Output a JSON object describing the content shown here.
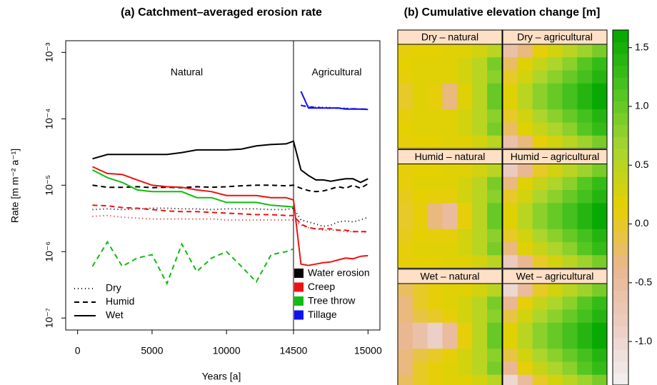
{
  "chart_data": [
    {
      "type": "line",
      "title": "(a) Catchment–averaged erosion rate",
      "xlabel": "Years [a]",
      "ylabel": "Rate [m m⁻² a⁻¹]",
      "log_y": true,
      "panels": [
        {
          "label": "Natural",
          "xlim": [
            -800,
            14500
          ]
        },
        {
          "label": "Agricultural",
          "xlim": [
            14500,
            15080
          ]
        }
      ],
      "ylim": [
        6.6e-08,
        0.0015
      ],
      "yticks": [
        {
          "value": 1e-07,
          "label": "10⁻⁷"
        },
        {
          "value": 1e-06,
          "label": "10⁻⁶"
        },
        {
          "value": 1e-05,
          "label": "10⁻⁵"
        },
        {
          "value": 0.0001,
          "label": "10⁻⁴"
        },
        {
          "value": 0.001,
          "label": "10⁻³"
        }
      ],
      "xticks": [
        0,
        5000,
        10000,
        14500,
        15000
      ],
      "climates": [
        {
          "name": "Dry",
          "dash": "1,4"
        },
        {
          "name": "Humid",
          "dash": "7,5"
        },
        {
          "name": "Wet",
          "dash": "none"
        }
      ],
      "x": [
        1000,
        2000,
        3000,
        4000,
        5000,
        6000,
        7000,
        8000,
        9000,
        10000,
        11000,
        12000,
        13000,
        14000,
        14500,
        14550,
        14600,
        14650,
        14700,
        14750,
        14800,
        14850,
        14900,
        14950,
        15000
      ],
      "series": [
        {
          "name": "Water erosion",
          "climate": "Wet",
          "color": "#000000",
          "values": [
            2.5e-05,
            2.9e-05,
            2.9e-05,
            2.9e-05,
            2.9e-05,
            2.9e-05,
            3.1e-05,
            3.4e-05,
            3.4e-05,
            3.4e-05,
            3.5e-05,
            3.9e-05,
            4.1e-05,
            4.2e-05,
            4.6e-05,
            1.7e-05,
            1.4e-05,
            1.2e-05,
            1.2e-05,
            1.15e-05,
            1.2e-05,
            1.25e-05,
            1.25e-05,
            1.1e-05,
            1.25e-05
          ]
        },
        {
          "name": "Water erosion",
          "climate": "Humid",
          "color": "#000000",
          "values": [
            1e-05,
            9.3e-06,
            9.3e-06,
            9.5e-06,
            9.2e-06,
            9.3e-06,
            9.2e-06,
            9.5e-06,
            9.3e-06,
            9.5e-06,
            9.8e-06,
            1e-05,
            1e-05,
            9.8e-06,
            1e-05,
            9e-06,
            8.3e-06,
            8e-06,
            8.2e-06,
            8.8e-06,
            9.5e-06,
            9e-06,
            1e-05,
            9e-06,
            1.05e-05
          ]
        },
        {
          "name": "Water erosion",
          "climate": "Dry",
          "color": "#000000",
          "values": [
            4.3e-06,
            4.4e-06,
            4.3e-06,
            4.4e-06,
            4.5e-06,
            4.5e-06,
            4.4e-06,
            4.4e-06,
            4.3e-06,
            4.4e-06,
            4.4e-06,
            4.4e-06,
            4.3e-06,
            4.3e-06,
            4.5e-06,
            3e-06,
            2.8e-06,
            2.6e-06,
            2.4e-06,
            2.5e-06,
            2.8e-06,
            2.9e-06,
            2.8e-06,
            3e-06,
            3.3e-06
          ]
        },
        {
          "name": "Creep",
          "climate": "Wet",
          "color": "#ee1111",
          "values": [
            1.9e-05,
            1.5e-05,
            1.45e-05,
            1.2e-05,
            1e-05,
            9.5e-06,
            9.3e-06,
            8.5e-06,
            8e-06,
            7e-06,
            7e-06,
            7e-06,
            6.5e-06,
            6.5e-06,
            6e-06,
            6.5e-07,
            6.2e-07,
            6.5e-07,
            6.8e-07,
            7e-07,
            7.5e-07,
            8e-07,
            7.8e-07,
            8.5e-07,
            8.7e-07
          ]
        },
        {
          "name": "Creep",
          "climate": "Humid",
          "color": "#ee1111",
          "values": [
            5e-06,
            4.9e-06,
            4.6e-06,
            4.5e-06,
            4.3e-06,
            4.1e-06,
            4e-06,
            4e-06,
            3.9e-06,
            3.8e-06,
            3.7e-06,
            3.6e-06,
            3.6e-06,
            3.5e-06,
            3.5e-06,
            2.6e-06,
            2.3e-06,
            2.2e-06,
            2.2e-06,
            2.2e-06,
            2.1e-06,
            2.1e-06,
            2e-06,
            2e-06,
            2e-06
          ]
        },
        {
          "name": "Creep",
          "climate": "Dry",
          "color": "#ee1111",
          "values": [
            3.4e-06,
            3.5e-06,
            3.3e-06,
            3.2e-06,
            3.1e-06,
            3.1e-06,
            3.1e-06,
            3.1e-06,
            3.1e-06,
            3e-06,
            3e-06,
            3e-06,
            3e-06,
            3e-06,
            3e-06,
            2.5e-06,
            2.3e-06,
            2.2e-06,
            2.1e-06,
            2.1e-06,
            2.1e-06,
            2e-06,
            2e-06,
            2e-06,
            1.95e-06
          ]
        },
        {
          "name": "Tree throw",
          "climate": "Wet",
          "color": "#11bb11",
          "values": [
            1.7e-05,
            1.3e-05,
            1.1e-05,
            8.5e-06,
            8e-06,
            8e-06,
            8e-06,
            6.5e-06,
            6.5e-06,
            5.5e-06,
            5.5e-06,
            5.5e-06,
            5e-06,
            4.8e-06,
            4.7e-06,
            null,
            null,
            null,
            null,
            null,
            null,
            null,
            null,
            null,
            null
          ]
        },
        {
          "name": "Tree throw",
          "climate": "Humid",
          "color": "#11bb11",
          "values": [
            6e-07,
            1.4e-06,
            6e-07,
            8e-07,
            9e-07,
            3.3e-07,
            1.3e-06,
            5e-07,
            8e-07,
            1e-06,
            6e-07,
            3.5e-07,
            9e-07,
            1e-06,
            1.1e-06,
            null,
            null,
            null,
            null,
            null,
            null,
            null,
            null,
            null,
            null
          ]
        },
        {
          "name": "Tillage",
          "climate": "Wet",
          "color": "#1111ee",
          "values": [
            null,
            null,
            null,
            null,
            null,
            null,
            null,
            null,
            null,
            null,
            null,
            null,
            null,
            null,
            null,
            0.00026,
            0.000145,
            0.000145,
            0.000145,
            0.000145,
            0.000145,
            0.00014,
            0.00014,
            0.00014,
            0.000138
          ]
        },
        {
          "name": "Tillage",
          "climate": "Humid",
          "color": "#1111ee",
          "values": [
            null,
            null,
            null,
            null,
            null,
            null,
            null,
            null,
            null,
            null,
            null,
            null,
            null,
            null,
            null,
            0.00016,
            0.00015,
            0.00015,
            0.000145,
            0.000145,
            0.000145,
            0.000142,
            0.000142,
            0.00014,
            0.00014
          ]
        },
        {
          "name": "Tillage",
          "climate": "Dry",
          "color": "#1111ee",
          "values": [
            null,
            null,
            null,
            null,
            null,
            null,
            null,
            null,
            null,
            null,
            null,
            null,
            null,
            null,
            null,
            0.00016,
            0.000155,
            0.00015,
            0.00015,
            0.000148,
            0.000145,
            0.000145,
            0.000142,
            0.00014,
            0.00014
          ]
        }
      ]
    },
    {
      "type": "heatmap",
      "title": "(b) Cumulative elevation change [m]",
      "zlim": [
        -1.37,
        1.65
      ],
      "zticks": [
        {
          "value": -1,
          "label": "-1.0"
        },
        -0.5,
        {
          "value": 0,
          "label": "0.0"
        },
        0.5,
        {
          "value": 1,
          "label": "1.0"
        },
        1.5
      ],
      "colors": [
        "#f2f2f2",
        "#eccdc4",
        "#e9b68f",
        "#e6d000",
        "#a8d530",
        "#4cc421",
        "#00a600"
      ],
      "panels": [
        {
          "label": "Dry – natural",
          "values": [
            [
              0.1,
              0.15,
              0.15,
              0.2,
              0.2,
              0.3,
              0.5
            ],
            [
              0.15,
              0.2,
              0.2,
              0.2,
              0.3,
              0.5,
              0.9
            ],
            [
              0.1,
              0.2,
              0.2,
              0.2,
              0.3,
              0.5,
              0.8
            ],
            [
              0.0,
              0.2,
              0.1,
              -0.3,
              0.2,
              0.5,
              1.0
            ],
            [
              0.0,
              0.2,
              0.1,
              -0.3,
              0.2,
              0.5,
              1.0
            ],
            [
              0.1,
              0.2,
              0.2,
              0.2,
              0.3,
              0.5,
              0.8
            ],
            [
              0.15,
              0.2,
              0.2,
              0.2,
              0.3,
              0.5,
              0.9
            ],
            [
              0.1,
              0.15,
              0.15,
              0.2,
              0.2,
              0.3,
              0.5
            ]
          ]
        },
        {
          "label": "Dry – agricultural",
          "values": [
            [
              -0.6,
              -0.3,
              0.1,
              0.3,
              0.5,
              0.7,
              0.9
            ],
            [
              -0.2,
              0.2,
              0.4,
              0.6,
              0.8,
              1.1,
              1.3
            ],
            [
              0.0,
              0.3,
              0.6,
              0.8,
              1.0,
              1.2,
              1.4
            ],
            [
              0.2,
              0.5,
              0.8,
              1.0,
              1.2,
              1.4,
              1.6
            ],
            [
              0.2,
              0.5,
              0.8,
              1.0,
              1.2,
              1.4,
              1.6
            ],
            [
              0.0,
              0.3,
              0.6,
              0.8,
              1.0,
              1.2,
              1.4
            ],
            [
              -0.2,
              0.2,
              0.4,
              0.6,
              0.8,
              1.1,
              1.3
            ],
            [
              -0.6,
              -0.3,
              0.1,
              0.3,
              0.5,
              0.7,
              0.9
            ]
          ]
        },
        {
          "label": "Humid – natural",
          "values": [
            [
              0.1,
              0.15,
              0.15,
              0.2,
              0.2,
              0.3,
              0.5
            ],
            [
              0.1,
              0.2,
              0.2,
              0.2,
              0.3,
              0.5,
              0.9
            ],
            [
              0.05,
              0.15,
              0.1,
              0.1,
              0.3,
              0.5,
              0.8
            ],
            [
              0.0,
              0.1,
              -0.3,
              -0.5,
              0.1,
              0.5,
              1.0
            ],
            [
              0.0,
              0.1,
              -0.3,
              -0.5,
              0.1,
              0.5,
              1.0
            ],
            [
              0.05,
              0.15,
              0.1,
              0.1,
              0.3,
              0.5,
              0.8
            ],
            [
              0.1,
              0.2,
              0.2,
              0.2,
              0.3,
              0.5,
              0.9
            ],
            [
              0.1,
              0.15,
              0.15,
              0.2,
              0.2,
              0.3,
              0.5
            ]
          ]
        },
        {
          "label": "Humid – agricultural",
          "values": [
            [
              -0.8,
              -0.4,
              0.0,
              0.3,
              0.5,
              0.7,
              0.9
            ],
            [
              -0.3,
              0.2,
              0.4,
              0.6,
              0.8,
              1.1,
              1.3
            ],
            [
              0.0,
              0.3,
              0.6,
              0.8,
              1.0,
              1.2,
              1.4
            ],
            [
              0.2,
              0.5,
              0.8,
              1.0,
              1.2,
              1.4,
              1.6
            ],
            [
              0.2,
              0.5,
              0.8,
              1.0,
              1.2,
              1.4,
              1.6
            ],
            [
              0.0,
              0.3,
              0.6,
              0.8,
              1.0,
              1.2,
              1.4
            ],
            [
              -0.3,
              0.2,
              0.4,
              0.6,
              0.8,
              1.1,
              1.3
            ],
            [
              -0.8,
              -0.4,
              0.0,
              0.3,
              0.5,
              0.7,
              0.9
            ]
          ]
        },
        {
          "label": "Wet – natural",
          "values": [
            [
              -0.2,
              0.0,
              0.1,
              0.2,
              0.2,
              0.3,
              0.5
            ],
            [
              -0.3,
              0.0,
              0.1,
              0.2,
              0.3,
              0.5,
              0.9
            ],
            [
              -0.3,
              -0.1,
              0.0,
              0.1,
              0.3,
              0.5,
              0.8
            ],
            [
              -0.4,
              -0.6,
              -0.9,
              -0.5,
              0.1,
              0.5,
              1.0
            ],
            [
              -0.4,
              -0.6,
              -0.9,
              -0.5,
              0.1,
              0.5,
              1.0
            ],
            [
              -0.3,
              -0.1,
              0.0,
              0.1,
              0.3,
              0.5,
              0.8
            ],
            [
              -0.3,
              0.0,
              0.1,
              0.2,
              0.3,
              0.5,
              0.9
            ],
            [
              -0.2,
              0.0,
              0.1,
              0.2,
              0.2,
              0.3,
              0.5
            ]
          ]
        },
        {
          "label": "Wet – agricultural",
          "values": [
            [
              -1.0,
              -0.5,
              0.0,
              0.3,
              0.5,
              0.7,
              0.9
            ],
            [
              -0.4,
              0.1,
              0.4,
              0.6,
              0.8,
              1.1,
              1.3
            ],
            [
              -0.1,
              0.3,
              0.6,
              0.8,
              1.0,
              1.2,
              1.4
            ],
            [
              0.2,
              0.5,
              0.8,
              1.0,
              1.2,
              1.4,
              1.6
            ],
            [
              0.2,
              0.5,
              0.8,
              1.0,
              1.2,
              1.4,
              1.6
            ],
            [
              -0.1,
              0.3,
              0.6,
              0.8,
              1.0,
              1.2,
              1.4
            ],
            [
              -0.4,
              0.1,
              0.4,
              0.6,
              0.8,
              1.1,
              1.3
            ],
            [
              -1.0,
              -0.5,
              0.0,
              0.3,
              0.5,
              0.7,
              0.9
            ]
          ]
        }
      ]
    }
  ]
}
